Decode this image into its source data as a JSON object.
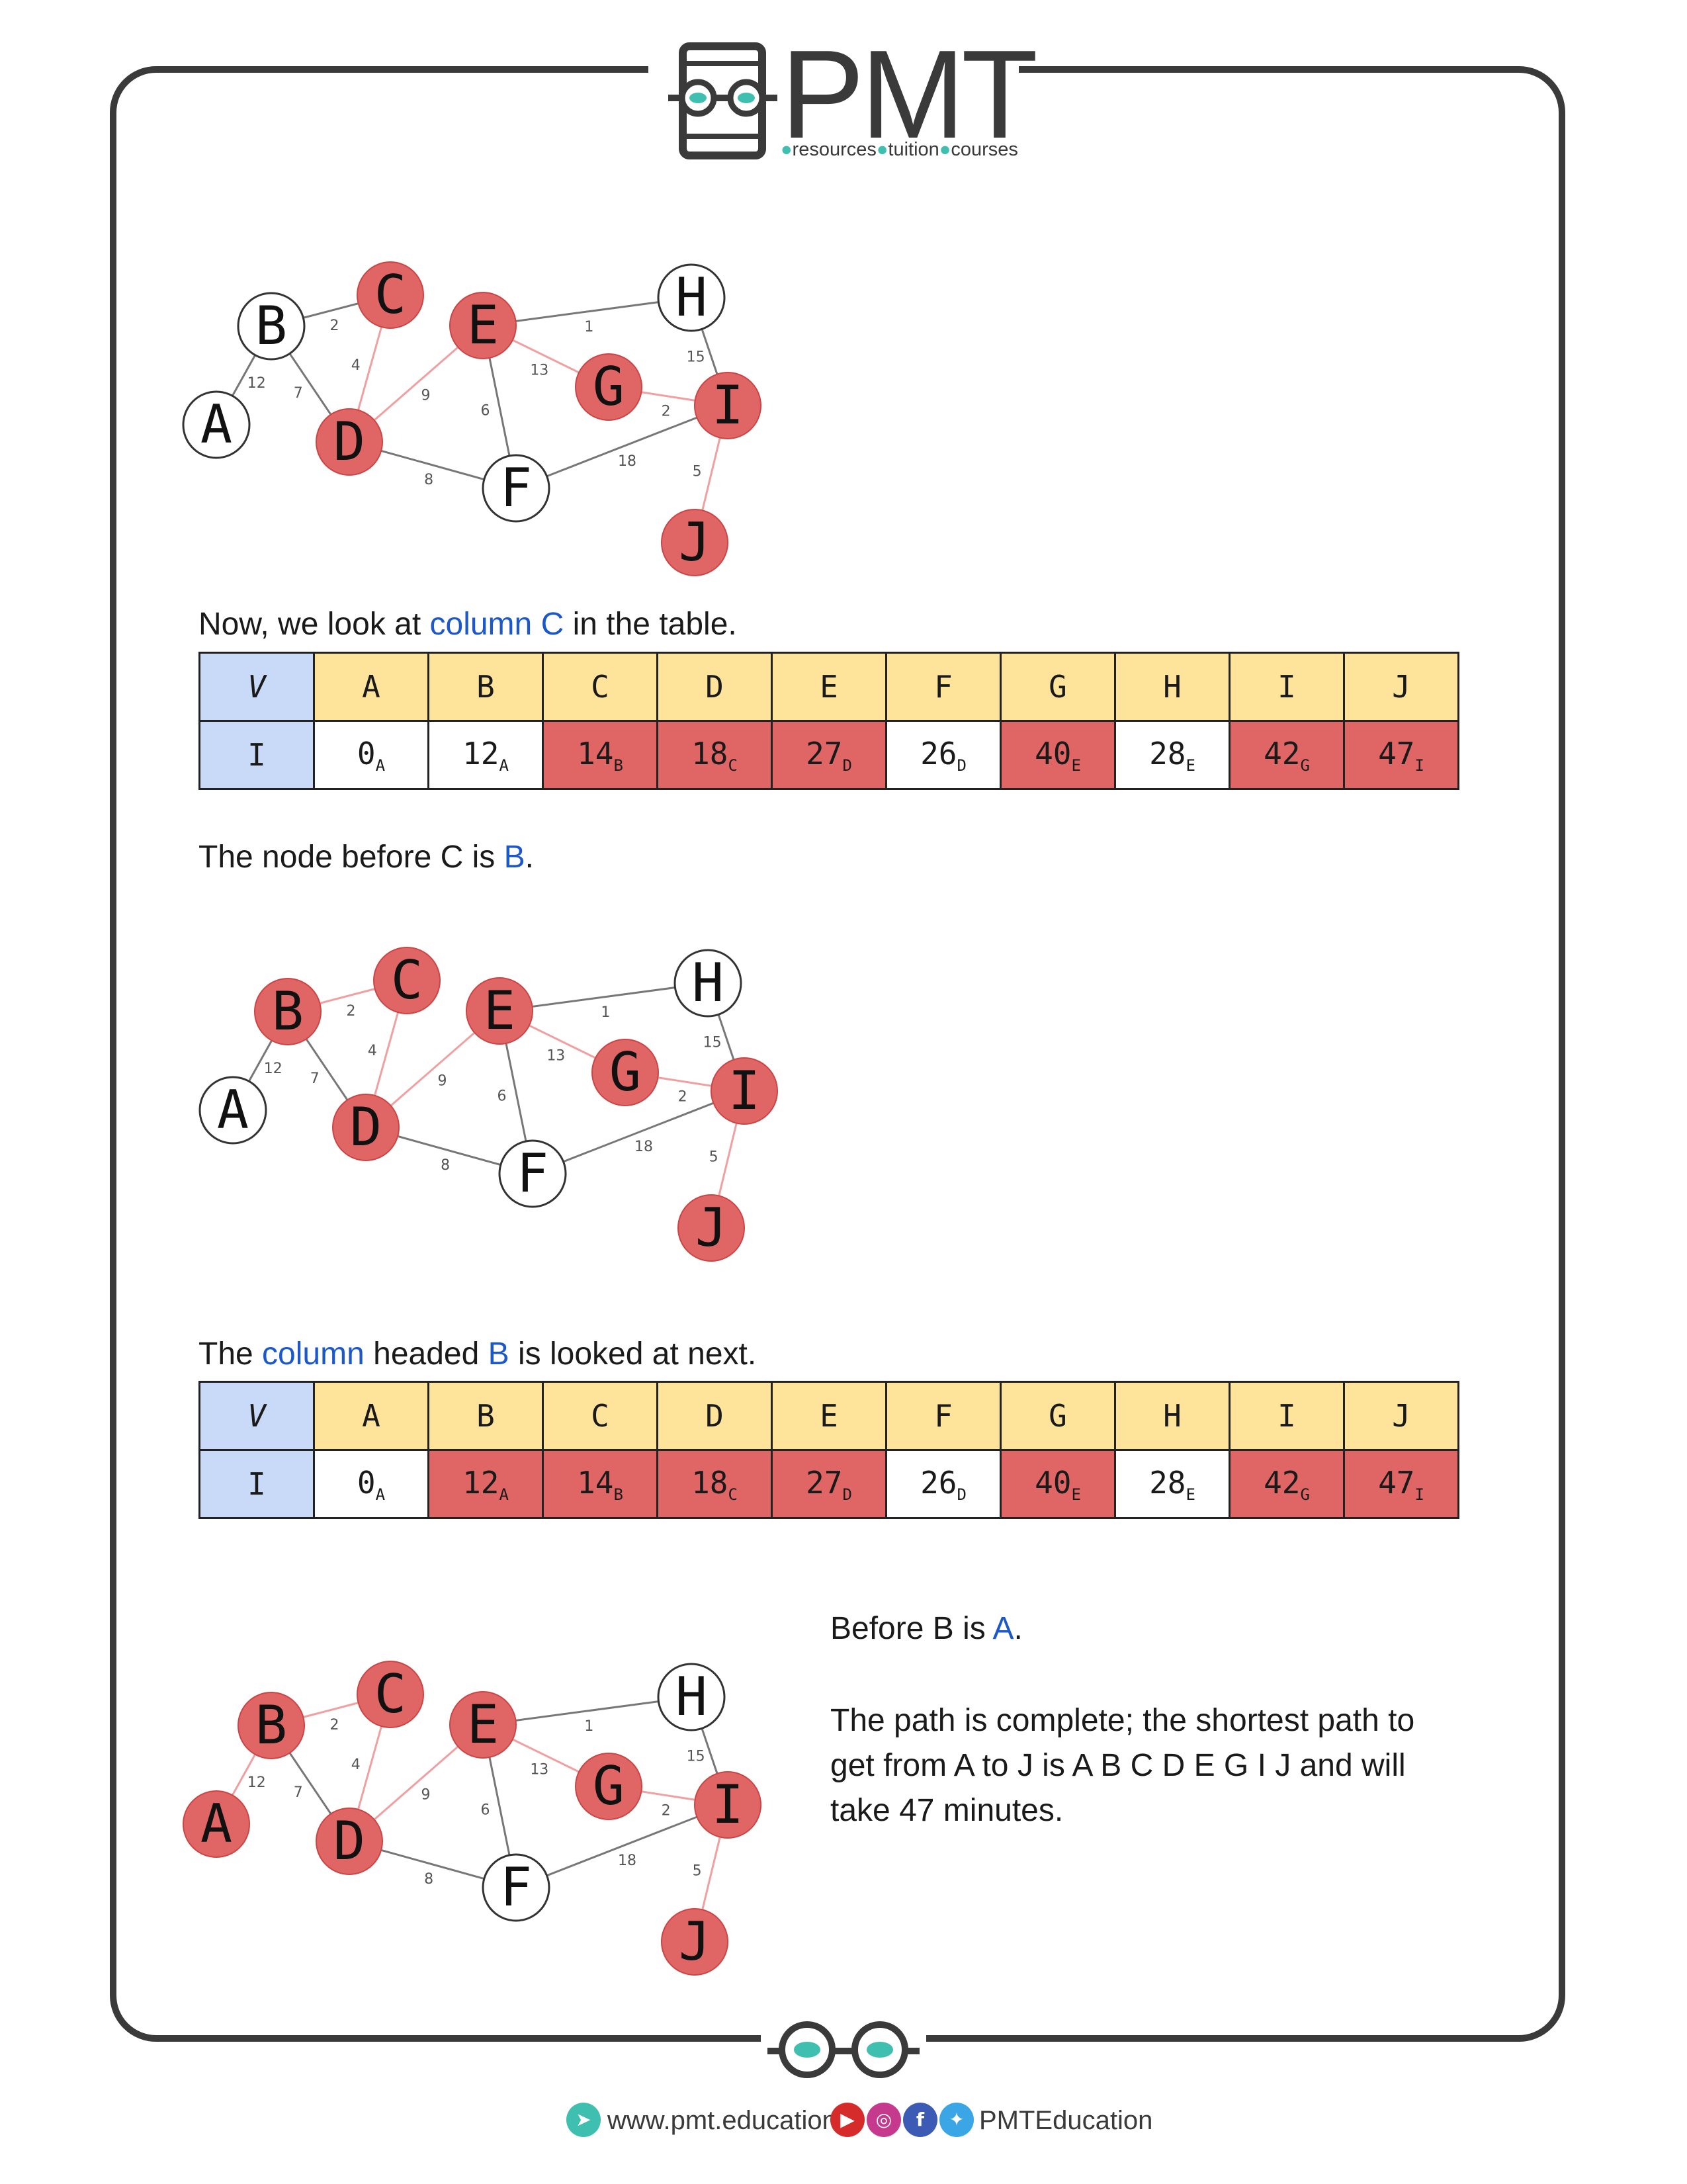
{
  "logo": {
    "brand": "PMT",
    "tagline": [
      "resources",
      "tuition",
      "courses"
    ]
  },
  "graphs": {
    "nodes": [
      "A",
      "B",
      "C",
      "D",
      "E",
      "F",
      "G",
      "H",
      "I",
      "J"
    ],
    "edges": [
      {
        "from": "A",
        "to": "B",
        "weight": "12"
      },
      {
        "from": "B",
        "to": "C",
        "weight": "2"
      },
      {
        "from": "B",
        "to": "D",
        "weight": "7"
      },
      {
        "from": "C",
        "to": "D",
        "weight": "4"
      },
      {
        "from": "D",
        "to": "E",
        "weight": "9"
      },
      {
        "from": "D",
        "to": "F",
        "weight": "8"
      },
      {
        "from": "E",
        "to": "H",
        "weight": "1"
      },
      {
        "from": "E",
        "to": "G",
        "weight": "13"
      },
      {
        "from": "E",
        "to": "F",
        "weight": "6"
      },
      {
        "from": "G",
        "to": "I",
        "weight": "2"
      },
      {
        "from": "H",
        "to": "I",
        "weight": "15"
      },
      {
        "from": "F",
        "to": "I",
        "weight": "18"
      },
      {
        "from": "I",
        "to": "J",
        "weight": "5"
      }
    ],
    "states": [
      {
        "highlighted": [
          "C",
          "D",
          "E",
          "G",
          "I",
          "J"
        ],
        "edges_highlighted": [
          "C-D",
          "D-E",
          "E-G",
          "G-I",
          "I-J"
        ]
      },
      {
        "highlighted": [
          "B",
          "C",
          "D",
          "E",
          "G",
          "I",
          "J"
        ],
        "edges_highlighted": [
          "B-C",
          "C-D",
          "D-E",
          "E-G",
          "G-I",
          "I-J"
        ]
      },
      {
        "highlighted": [
          "A",
          "B",
          "C",
          "D",
          "E",
          "G",
          "I",
          "J"
        ],
        "edges_highlighted": [
          "A-B",
          "B-C",
          "C-D",
          "D-E",
          "E-G",
          "G-I",
          "I-J"
        ]
      }
    ]
  },
  "text": {
    "p1": [
      "Now, we look at ",
      "column C",
      " in the table."
    ],
    "p2": [
      "The node before C is ",
      "B",
      "."
    ],
    "p3": [
      "The ",
      "column",
      " headed ",
      "B",
      " is looked at next."
    ],
    "p4": [
      "Before B is ",
      "A",
      "."
    ],
    "p5": "The path is complete; the shortest path to get from A to J is A B C D E G I J and will take 47 minutes."
  },
  "tables": [
    {
      "header": [
        "V",
        "A",
        "B",
        "C",
        "D",
        "E",
        "F",
        "G",
        "H",
        "I",
        "J"
      ],
      "row": [
        {
          "v": "I",
          "sub": "",
          "hl": false
        },
        {
          "v": "0",
          "sub": "A",
          "hl": false
        },
        {
          "v": "12",
          "sub": "A",
          "hl": false
        },
        {
          "v": "14",
          "sub": "B",
          "hl": true
        },
        {
          "v": "18",
          "sub": "C",
          "hl": true
        },
        {
          "v": "27",
          "sub": "D",
          "hl": true
        },
        {
          "v": "26",
          "sub": "D",
          "hl": false
        },
        {
          "v": "40",
          "sub": "E",
          "hl": true
        },
        {
          "v": "28",
          "sub": "E",
          "hl": false
        },
        {
          "v": "42",
          "sub": "G",
          "hl": true
        },
        {
          "v": "47",
          "sub": "I",
          "hl": true
        }
      ]
    },
    {
      "header": [
        "V",
        "A",
        "B",
        "C",
        "D",
        "E",
        "F",
        "G",
        "H",
        "I",
        "J"
      ],
      "row": [
        {
          "v": "I",
          "sub": "",
          "hl": false
        },
        {
          "v": "0",
          "sub": "A",
          "hl": false
        },
        {
          "v": "12",
          "sub": "A",
          "hl": true
        },
        {
          "v": "14",
          "sub": "B",
          "hl": true
        },
        {
          "v": "18",
          "sub": "C",
          "hl": true
        },
        {
          "v": "27",
          "sub": "D",
          "hl": true
        },
        {
          "v": "26",
          "sub": "D",
          "hl": false
        },
        {
          "v": "40",
          "sub": "E",
          "hl": true
        },
        {
          "v": "28",
          "sub": "E",
          "hl": false
        },
        {
          "v": "42",
          "sub": "G",
          "hl": true
        },
        {
          "v": "47",
          "sub": "I",
          "hl": true
        }
      ]
    }
  ],
  "footer": {
    "website": "www.pmt.education",
    "social": "PMTEducation",
    "icons": [
      "youtube-icon",
      "instagram-icon",
      "facebook-icon",
      "twitter-icon"
    ]
  },
  "colors": {
    "highlight": "#e06666",
    "header": "#fde49a",
    "vcell": "#c9daf8",
    "link": "#1c58c9",
    "teal": "#3fbfb0"
  }
}
